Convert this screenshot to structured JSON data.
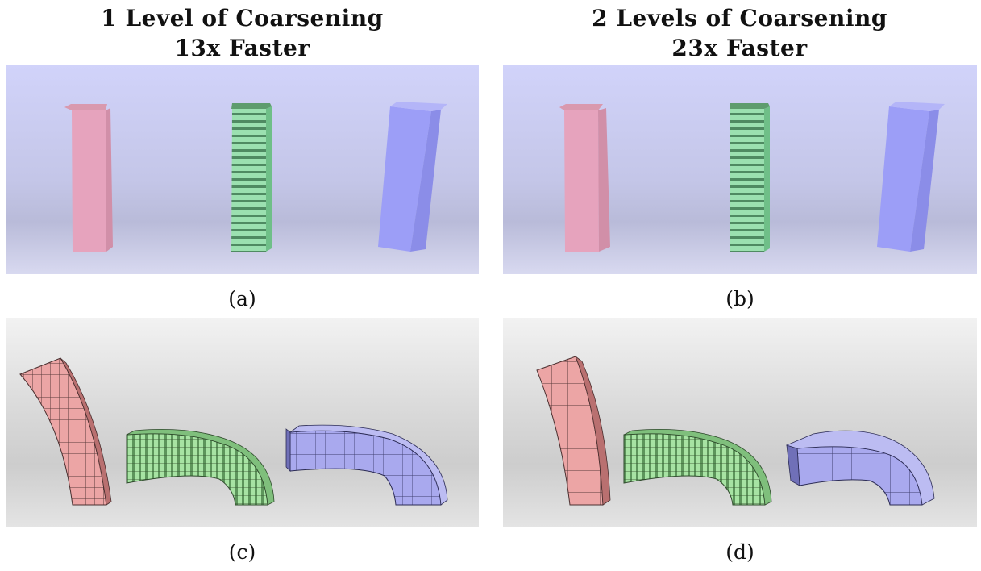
{
  "columns": [
    {
      "title_line1": "1 Level of Coarsening",
      "title_line2": "13x Faster"
    },
    {
      "title_line1": "2 Levels of Coarsening",
      "title_line2": "23x Faster"
    }
  ],
  "captions": {
    "a": "(a)",
    "b": "(b)",
    "c": "(c)",
    "d": "(d)"
  },
  "colors": {
    "pink": "#e9a6be",
    "green": "#8fdca6",
    "blue": "#9a9cf5",
    "top_bg": "#cfd2f7",
    "bottom_bg": "#dedede"
  }
}
